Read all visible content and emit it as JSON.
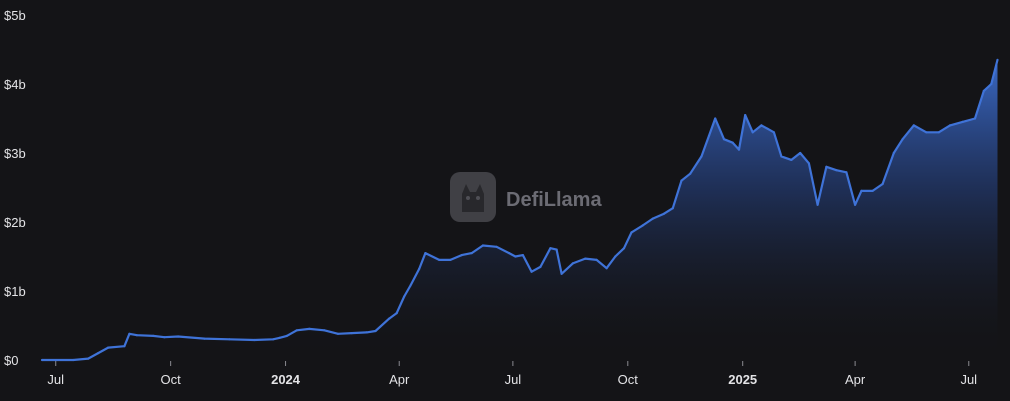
{
  "chart_data": {
    "type": "area",
    "title": "",
    "xlabel": "",
    "ylabel": "",
    "ylim": [
      0,
      5
    ],
    "y_unit": "billions USD",
    "y_ticks": [
      {
        "value": 0,
        "label": "$0"
      },
      {
        "value": 1,
        "label": "$1b"
      },
      {
        "value": 2,
        "label": "$2b"
      },
      {
        "value": 3,
        "label": "$3b"
      },
      {
        "value": 4,
        "label": "$4b"
      },
      {
        "value": 5,
        "label": "$5b"
      }
    ],
    "xlim": [
      "2023-06-20",
      "2025-07-26"
    ],
    "x_ticks": [
      {
        "date": "2023-07-01",
        "label": "Jul",
        "bold": false
      },
      {
        "date": "2023-10-01",
        "label": "Oct",
        "bold": false
      },
      {
        "date": "2024-01-01",
        "label": "2024",
        "bold": true
      },
      {
        "date": "2024-04-01",
        "label": "Apr",
        "bold": false
      },
      {
        "date": "2024-07-01",
        "label": "Jul",
        "bold": false
      },
      {
        "date": "2024-10-01",
        "label": "Oct",
        "bold": false
      },
      {
        "date": "2025-01-01",
        "label": "2025",
        "bold": true
      },
      {
        "date": "2025-04-01",
        "label": "Apr",
        "bold": false
      },
      {
        "date": "2025-07-01",
        "label": "Jul",
        "bold": false
      }
    ],
    "grid": false,
    "line_color": "#3f73d8",
    "series": [
      {
        "x": [
          "2023-06-20",
          "2023-07-15",
          "2023-07-27",
          "2023-08-04",
          "2023-08-12",
          "2023-08-25",
          "2023-08-29",
          "2023-09-04",
          "2023-09-17",
          "2023-09-26",
          "2023-10-07",
          "2023-10-28",
          "2023-11-17",
          "2023-12-07",
          "2023-12-22",
          "2023-12-27",
          "2024-01-02",
          "2024-01-10",
          "2024-01-20",
          "2024-02-01",
          "2024-02-12",
          "2024-02-23",
          "2024-03-06",
          "2024-03-13",
          "2024-03-24",
          "2024-03-30",
          "2024-04-05",
          "2024-04-10",
          "2024-04-17",
          "2024-04-22",
          "2024-05-03",
          "2024-05-12",
          "2024-05-21",
          "2024-05-29",
          "2024-06-07",
          "2024-06-18",
          "2024-06-28",
          "2024-07-03",
          "2024-07-09",
          "2024-07-16",
          "2024-07-23",
          "2024-07-31",
          "2024-08-05",
          "2024-08-09",
          "2024-08-18",
          "2024-08-28",
          "2024-09-06",
          "2024-09-14",
          "2024-09-21",
          "2024-09-28",
          "2024-10-04",
          "2024-10-13",
          "2024-10-21",
          "2024-10-30",
          "2024-11-06",
          "2024-11-13",
          "2024-11-20",
          "2024-11-29",
          "2024-12-05",
          "2024-12-10",
          "2024-12-17",
          "2024-12-24",
          "2024-12-29",
          "2025-01-03",
          "2025-01-09",
          "2025-01-16",
          "2025-01-21",
          "2025-01-26",
          "2025-02-01",
          "2025-02-09",
          "2025-02-16",
          "2025-02-23",
          "2025-03-02",
          "2025-03-09",
          "2025-03-17",
          "2025-03-25",
          "2025-04-01",
          "2025-04-06",
          "2025-04-15",
          "2025-04-23",
          "2025-05-02",
          "2025-05-09",
          "2025-05-18",
          "2025-05-28",
          "2025-06-07",
          "2025-06-16",
          "2025-06-26",
          "2025-07-06",
          "2025-07-13",
          "2025-07-19",
          "2025-07-24"
        ],
        "values": [
          0,
          0,
          0.02,
          0.1,
          0.18,
          0.2,
          0.38,
          0.36,
          0.35,
          0.33,
          0.34,
          0.31,
          0.3,
          0.29,
          0.3,
          0.32,
          0.35,
          0.43,
          0.45,
          0.43,
          0.38,
          0.39,
          0.4,
          0.42,
          0.6,
          0.68,
          0.92,
          1.08,
          1.32,
          1.55,
          1.45,
          1.45,
          1.52,
          1.55,
          1.66,
          1.64,
          1.55,
          1.5,
          1.52,
          1.28,
          1.35,
          1.62,
          1.6,
          1.25,
          1.4,
          1.47,
          1.45,
          1.33,
          1.5,
          1.62,
          1.85,
          1.95,
          2.05,
          2.12,
          2.2,
          2.6,
          2.7,
          2.95,
          3.25,
          3.5,
          3.2,
          3.15,
          3.05,
          3.55,
          3.3,
          3.4,
          3.35,
          3.3,
          2.95,
          2.9,
          3.0,
          2.85,
          2.25,
          2.8,
          2.75,
          2.72,
          2.25,
          2.45,
          2.45,
          2.55,
          3.0,
          3.2,
          3.4,
          3.3,
          3.3,
          3.4,
          3.45,
          3.5,
          3.9,
          4.0,
          4.35
        ]
      }
    ]
  },
  "watermark": {
    "text": "DefiLlama",
    "icon": "llama-logo-icon"
  }
}
